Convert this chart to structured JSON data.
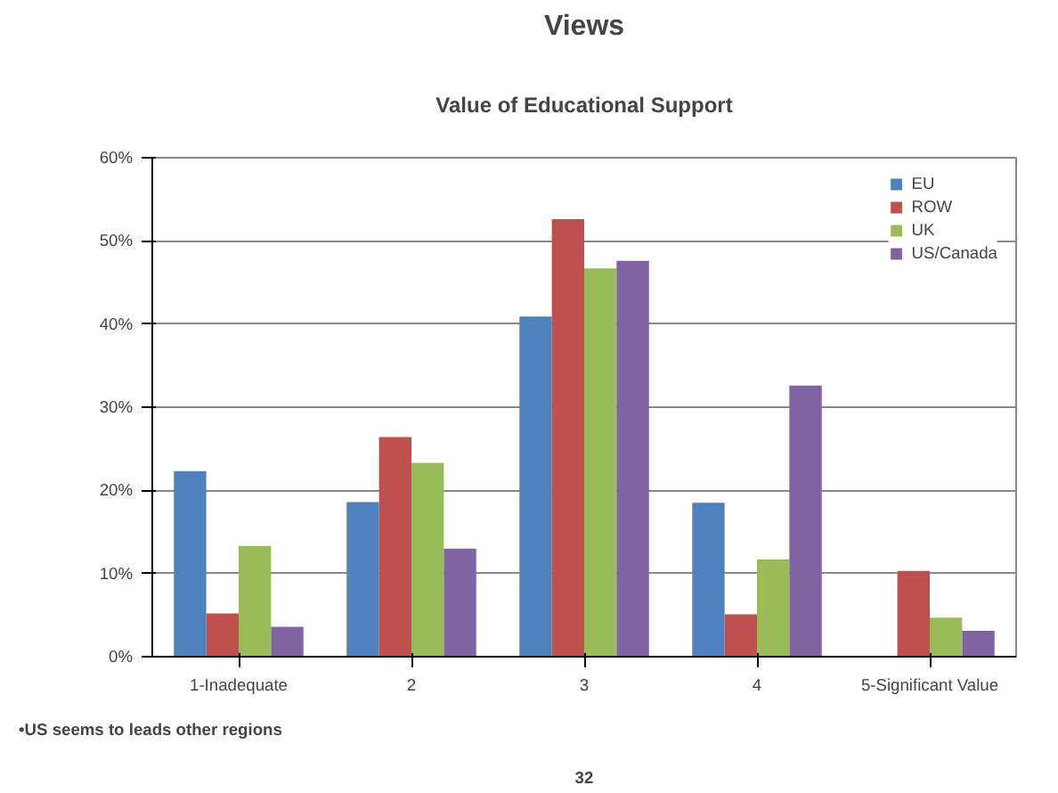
{
  "chart_data": {
    "type": "bar",
    "title": "Views",
    "subtitle": "Value of Educational Support",
    "categories": [
      "1-Inadequate",
      "2",
      "3",
      "4",
      "5-Significant Value"
    ],
    "series": [
      {
        "name": "EU",
        "color": "#4f81bd",
        "values": [
          22.3,
          18.6,
          40.9,
          18.5,
          0
        ]
      },
      {
        "name": "ROW",
        "color": "#c0504d",
        "values": [
          5.2,
          26.4,
          52.6,
          5.1,
          10.3
        ]
      },
      {
        "name": "UK",
        "color": "#9bbb59",
        "values": [
          13.3,
          23.3,
          46.7,
          11.7,
          4.7
        ]
      },
      {
        "name": "US/Canada",
        "color": "#8064a2",
        "values": [
          3.6,
          13.0,
          47.6,
          32.6,
          3.1
        ]
      }
    ],
    "ylim": [
      0,
      60
    ],
    "yticks": [
      {
        "value": 0,
        "label": "0%"
      },
      {
        "value": 10,
        "label": "10%"
      },
      {
        "value": 20,
        "label": "20%"
      },
      {
        "value": 30,
        "label": "30%"
      },
      {
        "value": 40,
        "label": "40%"
      },
      {
        "value": 50,
        "label": "50%"
      },
      {
        "value": 60,
        "label": "60%"
      }
    ],
    "grid": "y",
    "legend": "top right",
    "annotations": [
      "•US seems to leads other regions",
      "32"
    ]
  }
}
